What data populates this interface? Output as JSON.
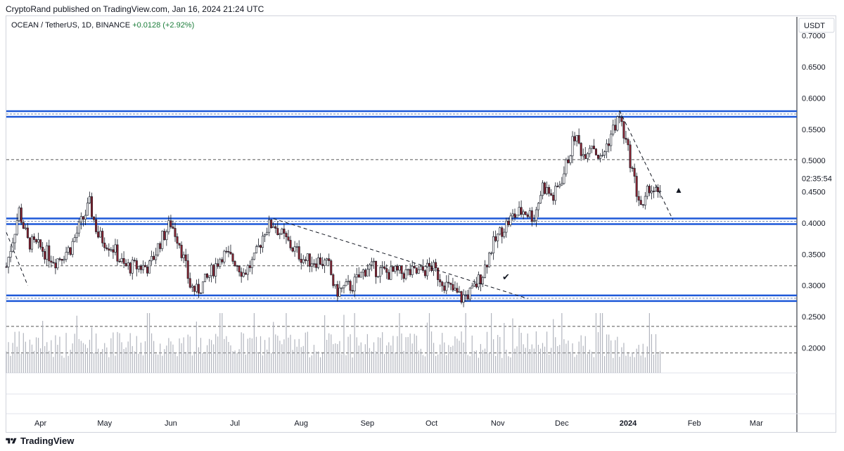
{
  "header": {
    "published": "CryptoRand published on TradingView.com, Jan 16, 2024 21:24 UTC"
  },
  "symbol": {
    "title": "OCEAN / TetherUS, 1D, BINANCE",
    "change": "+0.0128 (+2.92%)"
  },
  "axis": {
    "currency": "USDT",
    "countdown": "02:35:54"
  },
  "footer": {
    "brand": "TradingView"
  },
  "colors": {
    "up": "#ffffff",
    "down": "#8b2330",
    "outline": "#131722",
    "level": "#1e59d8",
    "trend": "#131722"
  },
  "chart_data": {
    "type": "candlestick",
    "y_ticks": [
      "0.7000",
      "0.6500",
      "0.6000",
      "0.5500",
      "0.5000",
      "0.4500",
      "0.4000",
      "0.3500",
      "0.3000",
      "0.2500",
      "0.2000"
    ],
    "x_ticks": [
      {
        "label": "Apr",
        "bold": false
      },
      {
        "label": "May",
        "bold": false
      },
      {
        "label": "Jun",
        "bold": false
      },
      {
        "label": "Jul",
        "bold": false
      },
      {
        "label": "Aug",
        "bold": false
      },
      {
        "label": "Sep",
        "bold": false
      },
      {
        "label": "Oct",
        "bold": false
      },
      {
        "label": "Nov",
        "bold": false
      },
      {
        "label": "Dec",
        "bold": false
      },
      {
        "label": "2024",
        "bold": true
      },
      {
        "label": "Feb",
        "bold": false
      },
      {
        "label": "Mar",
        "bold": false
      }
    ],
    "ylim": [
      0.16,
      0.73
    ],
    "horizontal_levels_thick": [
      0.5745,
      0.4027,
      0.2795
    ],
    "horizontal_levels_dashed": [
      0.5015,
      0.3315,
      0.2345,
      0.192
    ],
    "price_path": [
      [
        "2023-03-16",
        0.33
      ],
      [
        "2023-03-22",
        0.42
      ],
      [
        "2023-03-26",
        0.37
      ],
      [
        "2023-04-01",
        0.36
      ],
      [
        "2023-04-08",
        0.34
      ],
      [
        "2023-04-15",
        0.36
      ],
      [
        "2023-04-20",
        0.4
      ],
      [
        "2023-04-24",
        0.43
      ],
      [
        "2023-04-28",
        0.38
      ],
      [
        "2023-05-05",
        0.36
      ],
      [
        "2023-05-10",
        0.33
      ],
      [
        "2023-05-15",
        0.33
      ],
      [
        "2023-05-22",
        0.33
      ],
      [
        "2023-05-27",
        0.37
      ],
      [
        "2023-06-01",
        0.4
      ],
      [
        "2023-06-05",
        0.37
      ],
      [
        "2023-06-10",
        0.3
      ],
      [
        "2023-06-13",
        0.29
      ],
      [
        "2023-06-18",
        0.31
      ],
      [
        "2023-06-25",
        0.35
      ],
      [
        "2023-07-01",
        0.34
      ],
      [
        "2023-07-05",
        0.32
      ],
      [
        "2023-07-10",
        0.34
      ],
      [
        "2023-07-15",
        0.39
      ],
      [
        "2023-07-19",
        0.4
      ],
      [
        "2023-07-23",
        0.38
      ],
      [
        "2023-07-28",
        0.36
      ],
      [
        "2023-08-03",
        0.34
      ],
      [
        "2023-08-10",
        0.34
      ],
      [
        "2023-08-14",
        0.33
      ],
      [
        "2023-08-17",
        0.29
      ],
      [
        "2023-08-25",
        0.3
      ],
      [
        "2023-09-01",
        0.33
      ],
      [
        "2023-09-10",
        0.32
      ],
      [
        "2023-09-18",
        0.32
      ],
      [
        "2023-09-25",
        0.32
      ],
      [
        "2023-10-01",
        0.33
      ],
      [
        "2023-10-08",
        0.3
      ],
      [
        "2023-10-15",
        0.28
      ],
      [
        "2023-10-20",
        0.29
      ],
      [
        "2023-10-25",
        0.32
      ],
      [
        "2023-10-29",
        0.36
      ],
      [
        "2023-11-03",
        0.39
      ],
      [
        "2023-11-08",
        0.41
      ],
      [
        "2023-11-13",
        0.42
      ],
      [
        "2023-11-18",
        0.41
      ],
      [
        "2023-11-22",
        0.46
      ],
      [
        "2023-11-27",
        0.44
      ],
      [
        "2023-12-02",
        0.48
      ],
      [
        "2023-12-07",
        0.54
      ],
      [
        "2023-12-11",
        0.51
      ],
      [
        "2023-12-15",
        0.53
      ],
      [
        "2023-12-19",
        0.5
      ],
      [
        "2023-12-25",
        0.55
      ],
      [
        "2023-12-28",
        0.57
      ],
      [
        "2024-01-02",
        0.5
      ],
      [
        "2024-01-05",
        0.45
      ],
      [
        "2024-01-08",
        0.42
      ],
      [
        "2024-01-11",
        0.46
      ],
      [
        "2024-01-16",
        0.44
      ]
    ]
  }
}
